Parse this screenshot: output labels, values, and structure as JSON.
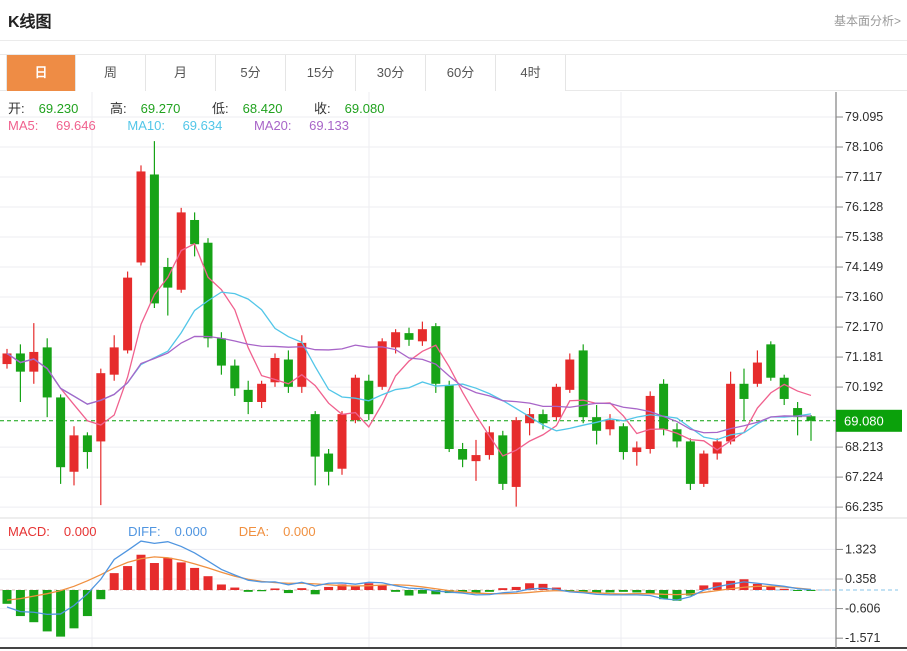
{
  "header": {
    "title": "K线图",
    "link": "基本面分析>"
  },
  "tabs": {
    "items": [
      "日",
      "周",
      "月",
      "5分",
      "15分",
      "30分",
      "60分",
      "4时"
    ],
    "active_index": 0
  },
  "quote": {
    "open_label": "开:",
    "open": "69.230",
    "high_label": "高:",
    "high": "69.270",
    "low_label": "低:",
    "low": "68.420",
    "close_label": "收:",
    "close": "69.080"
  },
  "ma_row": {
    "ma5_label": "MA5:",
    "ma5": "69.646",
    "ma10_label": "MA10:",
    "ma10": "69.634",
    "ma20_label": "MA20:",
    "ma20": "69.133"
  },
  "macd_row": {
    "macd_label": "MACD:",
    "macd": "0.000",
    "diff_label": "DIFF:",
    "diff": "0.000",
    "dea_label": "DEA:",
    "dea": "0.000"
  },
  "colors": {
    "up": "#e62c2c",
    "down": "#17a317",
    "badge": "#0ba10b",
    "ma5": "#f0618e",
    "ma10": "#52c6e8",
    "ma20": "#a865c8",
    "diff": "#4f95e0",
    "dea": "#f09040",
    "active_tab": "#ee8c45",
    "grid": "#ededf2",
    "axis": "#8a8a8a",
    "tick_text": "#2e2e2e",
    "quote_value": "#21a21f",
    "macd_label": "#e63333"
  },
  "chart_data": [
    {
      "type": "candlestick",
      "title": "K线图 (日K)",
      "legend": [
        "MA5",
        "MA10",
        "MA20"
      ],
      "current_price": "69.080",
      "y_ticks": [
        {
          "value": 79.095,
          "label": "79.095"
        },
        {
          "value": 78.106,
          "label": "78.106"
        },
        {
          "value": 77.117,
          "label": "77.117"
        },
        {
          "value": 76.128,
          "label": "76.128"
        },
        {
          "value": 75.138,
          "label": "75.138"
        },
        {
          "value": 74.149,
          "label": "74.149"
        },
        {
          "value": 73.16,
          "label": "73.160"
        },
        {
          "value": 72.17,
          "label": "72.170"
        },
        {
          "value": 71.181,
          "label": "71.181"
        },
        {
          "value": 70.192,
          "label": "70.192"
        },
        {
          "value": 69.203,
          "label": ""
        },
        {
          "value": 68.213,
          "label": "68.213"
        },
        {
          "value": 67.224,
          "label": "67.224"
        },
        {
          "value": 66.235,
          "label": "66.235"
        }
      ],
      "ohlc": [
        [
          70.95,
          71.45,
          70.8,
          71.3
        ],
        [
          71.3,
          71.6,
          69.7,
          70.7
        ],
        [
          70.7,
          72.3,
          70.3,
          71.35
        ],
        [
          71.5,
          71.8,
          69.2,
          69.85
        ],
        [
          69.85,
          69.95,
          67.0,
          67.55
        ],
        [
          67.4,
          68.9,
          66.95,
          68.6
        ],
        [
          68.6,
          68.7,
          67.5,
          68.05
        ],
        [
          68.4,
          70.8,
          66.3,
          70.65
        ],
        [
          70.6,
          71.9,
          70.4,
          71.5
        ],
        [
          71.4,
          74.0,
          71.3,
          73.8
        ],
        [
          74.3,
          77.5,
          74.2,
          77.3
        ],
        [
          77.2,
          78.3,
          72.8,
          72.95
        ],
        [
          74.15,
          74.45,
          72.55,
          73.47
        ],
        [
          73.4,
          76.1,
          73.3,
          75.95
        ],
        [
          75.7,
          75.95,
          74.5,
          74.9
        ],
        [
          74.95,
          75.1,
          71.5,
          71.8
        ],
        [
          71.8,
          72.0,
          70.6,
          70.9
        ],
        [
          70.9,
          71.1,
          69.9,
          70.15
        ],
        [
          70.1,
          70.4,
          69.3,
          69.7
        ],
        [
          69.7,
          70.4,
          69.5,
          70.3
        ],
        [
          70.35,
          71.3,
          70.2,
          71.15
        ],
        [
          71.1,
          71.4,
          70.0,
          70.2
        ],
        [
          70.2,
          71.9,
          70.0,
          71.65
        ],
        [
          69.3,
          69.4,
          66.95,
          67.9
        ],
        [
          68.0,
          68.15,
          66.95,
          67.4
        ],
        [
          67.5,
          69.4,
          67.3,
          69.3
        ],
        [
          69.1,
          70.6,
          69.0,
          70.5
        ],
        [
          70.4,
          70.6,
          69.1,
          69.3
        ],
        [
          70.2,
          71.8,
          70.1,
          71.7
        ],
        [
          71.5,
          72.1,
          71.3,
          72.0
        ],
        [
          71.97,
          72.15,
          71.55,
          71.75
        ],
        [
          71.7,
          72.35,
          71.55,
          72.1
        ],
        [
          72.2,
          72.3,
          70.0,
          70.3
        ],
        [
          70.25,
          70.4,
          68.05,
          68.15
        ],
        [
          68.15,
          68.35,
          67.55,
          67.8
        ],
        [
          67.75,
          68.45,
          67.1,
          67.95
        ],
        [
          67.95,
          68.9,
          67.8,
          68.7
        ],
        [
          68.6,
          68.75,
          66.8,
          67.0
        ],
        [
          66.9,
          69.2,
          66.25,
          69.1
        ],
        [
          69.0,
          69.5,
          68.6,
          69.3
        ],
        [
          69.3,
          69.45,
          68.8,
          69.0
        ],
        [
          69.2,
          70.3,
          69.1,
          70.2
        ],
        [
          70.1,
          71.3,
          70.0,
          71.1
        ],
        [
          71.4,
          71.6,
          69.0,
          69.2
        ],
        [
          69.2,
          69.6,
          68.3,
          68.75
        ],
        [
          68.8,
          69.3,
          68.6,
          69.1
        ],
        [
          68.9,
          69.0,
          67.8,
          68.05
        ],
        [
          68.05,
          68.4,
          67.6,
          68.2
        ],
        [
          68.15,
          70.05,
          68.0,
          69.9
        ],
        [
          70.3,
          70.45,
          68.6,
          68.8
        ],
        [
          68.8,
          69.0,
          68.2,
          68.4
        ],
        [
          68.4,
          68.5,
          66.8,
          67.0
        ],
        [
          67.0,
          68.1,
          66.9,
          68.0
        ],
        [
          68.0,
          68.5,
          67.8,
          68.4
        ],
        [
          68.4,
          70.7,
          68.3,
          70.3
        ],
        [
          70.3,
          70.8,
          69.1,
          69.8
        ],
        [
          70.3,
          71.4,
          70.2,
          71.0
        ],
        [
          71.6,
          71.7,
          70.4,
          70.5
        ],
        [
          70.5,
          70.6,
          69.6,
          69.8
        ],
        [
          69.5,
          69.7,
          68.6,
          69.2
        ],
        [
          69.23,
          69.27,
          68.42,
          69.08
        ]
      ]
    },
    {
      "type": "bar",
      "title": "MACD",
      "y_ticks": [
        {
          "value": 1.323,
          "label": "1.323"
        },
        {
          "value": 0.358,
          "label": "0.358"
        },
        {
          "value": -0.606,
          "label": "-0.606"
        },
        {
          "value": -1.571,
          "label": "-1.571"
        }
      ],
      "histogram": [
        -0.45,
        -0.85,
        -1.05,
        -1.35,
        -1.52,
        -1.25,
        -0.85,
        -0.3,
        0.55,
        0.78,
        1.15,
        0.88,
        1.05,
        0.9,
        0.72,
        0.45,
        0.18,
        0.08,
        -0.06,
        -0.04,
        0.05,
        -0.1,
        0.06,
        -0.14,
        0.1,
        0.18,
        0.12,
        0.22,
        0.15,
        -0.06,
        -0.18,
        -0.12,
        -0.14,
        -0.1,
        -0.08,
        -0.12,
        -0.06,
        0.06,
        0.1,
        0.22,
        0.2,
        0.08,
        -0.04,
        -0.06,
        -0.1,
        -0.08,
        -0.06,
        -0.08,
        -0.12,
        -0.3,
        -0.35,
        -0.18,
        0.15,
        0.25,
        0.3,
        0.35,
        0.2,
        0.1,
        0.04,
        -0.03,
        -0.02
      ],
      "dea": [
        -0.33,
        -0.28,
        -0.2,
        -0.12,
        -0.02,
        0.12,
        0.3,
        0.5,
        0.72,
        0.9,
        1.02,
        1.08,
        1.05,
        0.97,
        0.85,
        0.72,
        0.58,
        0.45,
        0.35,
        0.28,
        0.24,
        0.22,
        0.22,
        0.2,
        0.17,
        0.14,
        0.13,
        0.14,
        0.16,
        0.17,
        0.15,
        0.1,
        0.04,
        -0.02,
        -0.06,
        -0.1,
        -0.12,
        -0.12,
        -0.11,
        -0.08,
        -0.04,
        -0.02,
        -0.04,
        -0.06,
        -0.09,
        -0.12,
        -0.13,
        -0.12,
        -0.12,
        -0.14,
        -0.15,
        -0.13,
        -0.08,
        -0.02,
        0.04,
        0.09,
        0.12,
        0.12,
        0.1,
        0.06,
        0.02
      ]
    }
  ]
}
